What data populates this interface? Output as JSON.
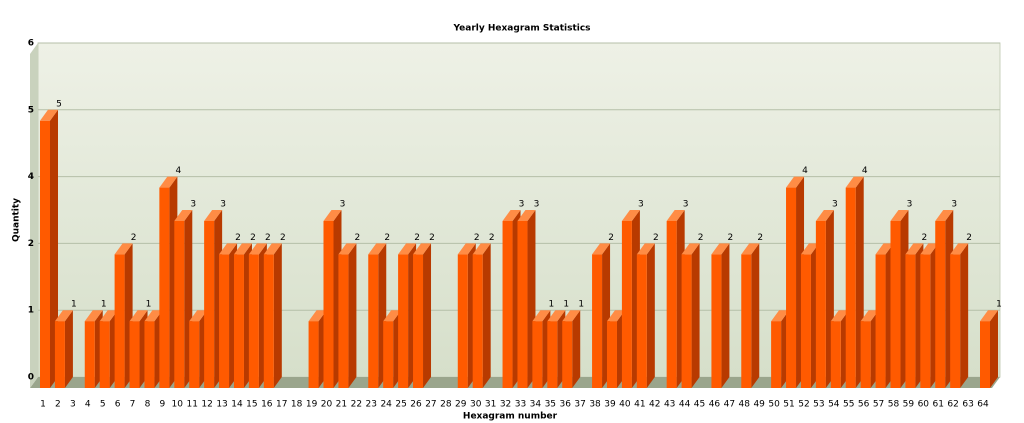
{
  "chart_data": {
    "type": "bar3d",
    "title": "Yearly Hexagram Statistics",
    "x_label": "Hexagram number",
    "y_label": "Quantity",
    "categories": [
      "1",
      "2",
      "3",
      "4",
      "5",
      "6",
      "7",
      "8",
      "9",
      "10",
      "11",
      "12",
      "13",
      "14",
      "15",
      "16",
      "17",
      "18",
      "19",
      "20",
      "21",
      "22",
      "23",
      "24",
      "25",
      "26",
      "27",
      "28",
      "29",
      "30",
      "31",
      "32",
      "33",
      "34",
      "35",
      "36",
      "37",
      "38",
      "39",
      "40",
      "41",
      "42",
      "43",
      "44",
      "45",
      "46",
      "47",
      "48",
      "49",
      "50",
      "51",
      "52",
      "53",
      "54",
      "55",
      "56",
      "57",
      "58",
      "59",
      "60",
      "61",
      "62",
      "63",
      "64"
    ],
    "values": [
      5,
      1,
      0,
      1,
      1,
      2,
      1,
      1,
      4,
      3,
      1,
      3,
      2,
      2,
      2,
      2,
      0,
      0,
      1,
      3,
      2,
      0,
      2,
      1,
      2,
      2,
      0,
      0,
      2,
      2,
      0,
      3,
      3,
      1,
      1,
      1,
      0,
      2,
      1,
      3,
      2,
      0,
      3,
      2,
      0,
      2,
      0,
      2,
      0,
      1,
      4,
      2,
      3,
      1,
      4,
      1,
      2,
      3,
      2,
      2,
      3,
      2,
      0,
      1
    ],
    "color": "#ff5a00",
    "ylim": [
      0,
      6
    ],
    "yticks": [
      0,
      1,
      2,
      4,
      5,
      6
    ],
    "grid": true
  }
}
